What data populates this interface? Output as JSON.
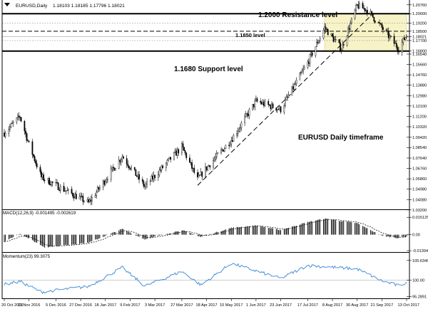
{
  "header": {
    "symbol_label": "EURUSD,Daily",
    "ohlc_values": "1.18103 1.18185 1.17796 1.18021"
  },
  "annotations": {
    "resistance": "1.2000 Resistance level",
    "mid": "1.1850 level",
    "support": "1.1680 Support level",
    "timeframe": "EURUSD Daily timeframe"
  },
  "colors": {
    "background": "#ffffff",
    "candle": "#000000",
    "zone_fill": "#f7f3c6",
    "momentum_line": "#4a90d9",
    "grid": "#c8c8c8"
  },
  "chart_data": [
    {
      "type": "candlestick",
      "pane": "price",
      "y_range": [
        1.0325,
        1.2105
      ],
      "y_ticks": [
        "1.20760",
        "1.20000",
        "1.19200",
        "1.18500",
        "1.18021",
        "1.17700",
        "1.16800",
        "1.16540",
        "1.15660",
        "1.14760",
        "1.13880",
        "1.12980",
        "1.12100",
        "1.11200",
        "1.10320",
        "1.09420",
        "1.08540",
        "1.07640",
        "1.06760",
        "1.05860",
        "1.04980",
        "1.04080",
        "1.03200"
      ],
      "last_price": "1.18021",
      "x_labels": [
        "20 Oct 2016",
        "11 Nov 2016",
        "5 Dec 2016",
        "27 Dec 2016",
        "18 Jan 2017",
        "9 Feb 2017",
        "3 Mar 2017",
        "27 Mar 2017",
        "18 Apr 2017",
        "10 May 2017",
        "1 Jun 2017",
        "23 Jun 2017",
        "17 Jul 2017",
        "8 Aug 2017",
        "30 Aug 2017",
        "21 Sep 2017",
        "13 Oct 2017"
      ],
      "key_points": [
        {
          "date": "20 Oct 2016",
          "price": 1.098
        },
        {
          "date": "3 Nov 2016",
          "price": 1.112
        },
        {
          "date": "11 Nov 2016",
          "price": 1.088
        },
        {
          "date": "22 Nov 2016",
          "price": 1.06
        },
        {
          "date": "3 Jan 2017",
          "price": 1.038
        },
        {
          "date": "2 Feb 2017",
          "price": 1.078
        },
        {
          "date": "22 Feb 2017",
          "price": 1.052
        },
        {
          "date": "27 Mar 2017",
          "price": 1.086
        },
        {
          "date": "10 Apr 2017",
          "price": 1.058
        },
        {
          "date": "18 Apr 2017",
          "price": 1.068
        },
        {
          "date": "10 May 2017",
          "price": 1.092
        },
        {
          "date": "1 Jun 2017",
          "price": 1.125
        },
        {
          "date": "23 Jun 2017",
          "price": 1.118
        },
        {
          "date": "17 Jul 2017",
          "price": 1.158
        },
        {
          "date": "1 Aug 2017",
          "price": 1.188
        },
        {
          "date": "16 Aug 2017",
          "price": 1.17
        },
        {
          "date": "30 Aug 2017",
          "price": 1.207
        },
        {
          "date": "8 Sep 2017",
          "price": 1.203
        },
        {
          "date": "21 Sep 2017",
          "price": 1.188
        },
        {
          "date": "6 Oct 2017",
          "price": 1.17
        },
        {
          "date": "13 Oct 2017",
          "price": 1.182
        }
      ],
      "levels": [
        {
          "label": "1.2000 Resistance level",
          "price": 1.2,
          "style": "thick"
        },
        {
          "label": "1.1850 level",
          "price": 1.185,
          "style": "dashed"
        },
        {
          "label": "1.1680 Support level",
          "price": 1.168,
          "style": "thick"
        }
      ],
      "consolidation_zone": {
        "from_date": "1 Aug 2017",
        "to_date": "13 Oct 2017",
        "price_range": [
          1.168,
          1.2
        ]
      },
      "trendline": {
        "from": {
          "date": "10 Apr 2017",
          "price": 1.053
        },
        "to": {
          "date": "13 Sep 2017",
          "price": 1.2
        }
      }
    },
    {
      "type": "histogram",
      "pane": "macd",
      "title": "MACD(12,26,9) -0.001495 -0.002619",
      "y_ticks": [
        "0.015125",
        "0.00",
        "-0.01394"
      ],
      "y_range": [
        -0.0145,
        0.0165
      ],
      "key_points": [
        {
          "date": "20 Oct 2016",
          "value": -0.006
        },
        {
          "date": "3 Nov 2016",
          "value": 0.001
        },
        {
          "date": "25 Nov 2016",
          "value": -0.011
        },
        {
          "date": "3 Jan 2017",
          "value": -0.007
        },
        {
          "date": "2 Feb 2017",
          "value": 0.005
        },
        {
          "date": "22 Feb 2017",
          "value": -0.004
        },
        {
          "date": "27 Mar 2017",
          "value": 0.004
        },
        {
          "date": "13 Apr 2017",
          "value": -0.002
        },
        {
          "date": "10 May 2017",
          "value": 0.006
        },
        {
          "date": "1 Jun 2017",
          "value": 0.008
        },
        {
          "date": "23 Jun 2017",
          "value": 0.004
        },
        {
          "date": "17 Jul 2017",
          "value": 0.011
        },
        {
          "date": "1 Aug 2017",
          "value": 0.014
        },
        {
          "date": "30 Aug 2017",
          "value": 0.01
        },
        {
          "date": "21 Sep 2017",
          "value": -0.001
        },
        {
          "date": "6 Oct 2017",
          "value": -0.003
        },
        {
          "date": "13 Oct 2017",
          "value": -0.0015
        }
      ]
    },
    {
      "type": "line",
      "pane": "momentum",
      "title": "Momentum(23) 99.3075",
      "y_ticks": [
        "105.6346",
        "100.00",
        "95.2891"
      ],
      "y_range": [
        95.0,
        106.0
      ],
      "key_points": [
        {
          "date": "20 Oct 2016",
          "value": 98.8
        },
        {
          "date": "3 Nov 2016",
          "value": 99.6
        },
        {
          "date": "22 Nov 2016",
          "value": 96.6
        },
        {
          "date": "3 Jan 2017",
          "value": 98.2
        },
        {
          "date": "2 Feb 2017",
          "value": 103.6
        },
        {
          "date": "22 Feb 2017",
          "value": 98.3
        },
        {
          "date": "27 Mar 2017",
          "value": 102.5
        },
        {
          "date": "13 Apr 2017",
          "value": 98.6
        },
        {
          "date": "10 May 2017",
          "value": 104.8
        },
        {
          "date": "23 Jun 2017",
          "value": 100.5
        },
        {
          "date": "17 Jul 2017",
          "value": 104.2
        },
        {
          "date": "30 Aug 2017",
          "value": 103.2
        },
        {
          "date": "21 Sep 2017",
          "value": 99.8
        },
        {
          "date": "6 Oct 2017",
          "value": 98.4
        },
        {
          "date": "13 Oct 2017",
          "value": 99.3
        }
      ]
    }
  ]
}
